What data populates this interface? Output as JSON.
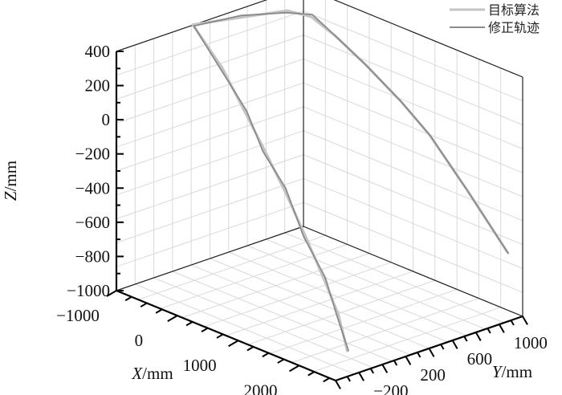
{
  "chart_data": {
    "type": "line3d",
    "title": "",
    "axes": {
      "x": {
        "label_var": "X",
        "label_unit": "/mm",
        "ticks": [
          "−1000",
          "0",
          "1000",
          "2000"
        ],
        "tick_values": [
          -1000,
          0,
          1000,
          2000
        ],
        "range": [
          -1000,
          2600
        ]
      },
      "y": {
        "label_var": "Y",
        "label_unit": "/mm",
        "ticks": [
          "−200",
          "200",
          "600",
          "1000"
        ],
        "tick_values": [
          -200,
          200,
          600,
          1000
        ],
        "range": [
          -400,
          1200
        ]
      },
      "z": {
        "label_var": "Z",
        "label_unit": "/mm",
        "ticks": [
          "400",
          "200",
          "0",
          "−200",
          "−400",
          "−600",
          "−800",
          "−1000"
        ],
        "tick_values": [
          400,
          200,
          0,
          -200,
          -400,
          -600,
          -800,
          -1000
        ],
        "range": [
          -1000,
          400
        ]
      }
    },
    "grid": true,
    "legend": {
      "placement": "top-right"
    },
    "series": [
      {
        "name": "目标算法",
        "color": "#c4c4c4",
        "points": [
          [
            2600,
            -300,
            -850
          ],
          [
            2300,
            -220,
            -700
          ],
          [
            1950,
            -160,
            -560
          ],
          [
            1500,
            -90,
            -380
          ],
          [
            1050,
            -30,
            -200
          ],
          [
            600,
            30,
            -40
          ],
          [
            200,
            80,
            100
          ],
          [
            -300,
            140,
            280
          ],
          [
            -900,
            200,
            430
          ],
          [
            -700,
            500,
            430
          ],
          [
            -500,
            800,
            430
          ],
          [
            -300,
            900,
            400
          ],
          [
            0,
            950,
            320
          ],
          [
            400,
            1000,
            200
          ],
          [
            900,
            1050,
            40
          ],
          [
            1300,
            1080,
            -100
          ],
          [
            1900,
            1100,
            -350
          ],
          [
            2500,
            1120,
            -620
          ]
        ]
      },
      {
        "name": "修正轨迹",
        "color": "#8a8a8a",
        "points": [
          [
            2600,
            -290,
            -850
          ],
          [
            2300,
            -230,
            -710
          ],
          [
            1950,
            -150,
            -550
          ],
          [
            1500,
            -100,
            -390
          ],
          [
            1050,
            -20,
            -190
          ],
          [
            600,
            20,
            -50
          ],
          [
            200,
            90,
            110
          ],
          [
            -300,
            130,
            270
          ],
          [
            -900,
            210,
            420
          ],
          [
            -700,
            510,
            440
          ],
          [
            -500,
            790,
            420
          ],
          [
            -300,
            910,
            410
          ],
          [
            0,
            940,
            330
          ],
          [
            400,
            1010,
            190
          ],
          [
            900,
            1040,
            50
          ],
          [
            1300,
            1090,
            -110
          ],
          [
            1900,
            1090,
            -340
          ],
          [
            2500,
            1130,
            -630
          ]
        ]
      }
    ]
  }
}
